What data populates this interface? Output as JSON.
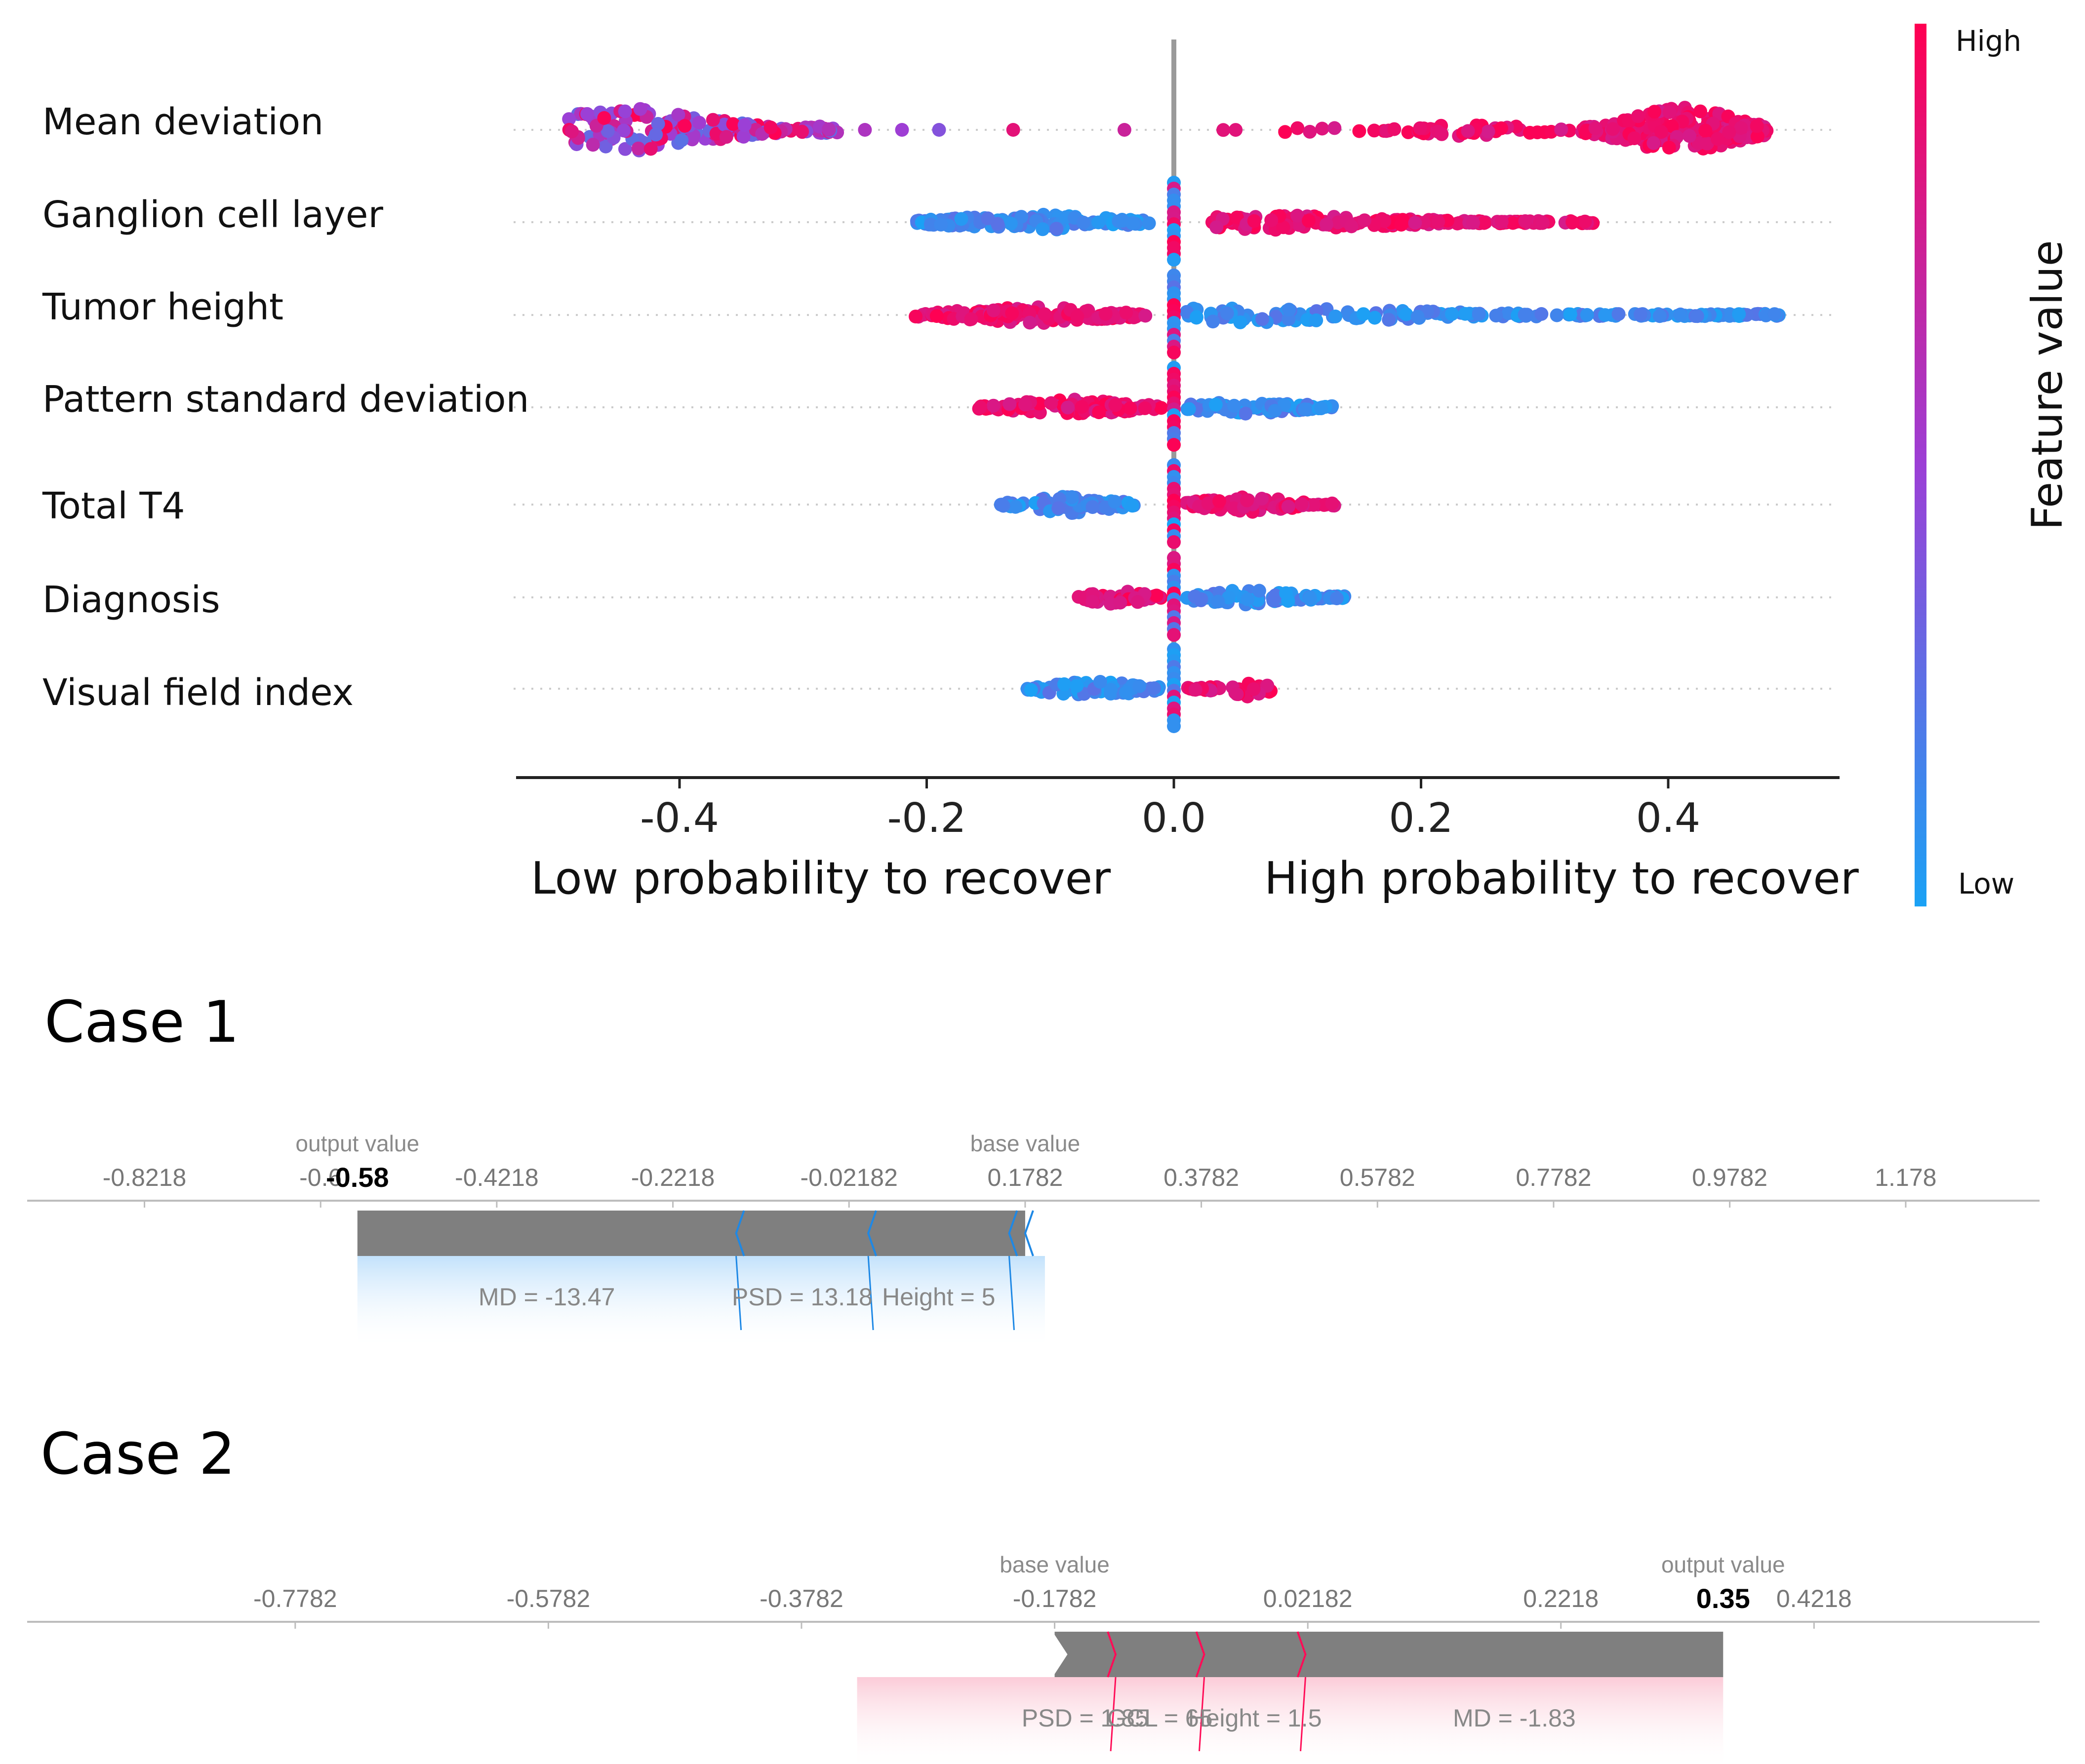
{
  "chart_data": [
    {
      "type": "scatter",
      "subtype": "beeswarm",
      "title": "",
      "features": [
        "Mean deviation",
        "Ganglion cell layer",
        "Tumor height",
        "Pattern standard deviation",
        "Total T4",
        "Diagnosis",
        "Visual field index"
      ],
      "xlim": [
        -0.53,
        0.54
      ],
      "xticks": [
        -0.4,
        -0.2,
        0.0,
        0.2,
        0.4
      ],
      "xtick_labels": [
        "-0.4",
        "-0.2",
        "0.0",
        "0.2",
        "0.4"
      ],
      "xlabel_left": "Low probability to recover",
      "xlabel_right": "High probability to recover",
      "colorbar": {
        "title": "Feature value",
        "high_label": "High",
        "low_label": "Low",
        "high_color": "#ff0d57",
        "low_color": "#1e88e5"
      },
      "series": [
        {
          "feature": "Mean deviation",
          "neg_range": [
            -0.49,
            -0.27
          ],
          "neg_tail": [
            -0.25,
            -0.22,
            -0.19,
            -0.13,
            -0.04
          ],
          "pos_range": [
            0.33,
            0.48
          ],
          "pos_mid": [
            0.04,
            0.05,
            0.09,
            0.1,
            0.11,
            0.12,
            0.13,
            0.15,
            0.17,
            0.2,
            0.21,
            0.24,
            0.26,
            0.28,
            0.3,
            0.32
          ],
          "neg_color": "mixed",
          "pos_color": "high"
        },
        {
          "feature": "Ganglion cell layer",
          "neg_range": [
            -0.21,
            -0.02
          ],
          "pos_range": [
            0.03,
            0.34
          ],
          "neg_color": "low",
          "pos_color": "high"
        },
        {
          "feature": "Tumor height",
          "neg_range": [
            -0.21,
            -0.02
          ],
          "pos_range": [
            0.01,
            0.49
          ],
          "neg_color": "high",
          "pos_color": "low"
        },
        {
          "feature": "Pattern standard deviation",
          "neg_range": [
            -0.16,
            -0.01
          ],
          "pos_range": [
            0.01,
            0.13
          ],
          "neg_color": "high",
          "pos_color": "low"
        },
        {
          "feature": "Total T4",
          "neg_range": [
            -0.14,
            -0.03
          ],
          "pos_range": [
            0.01,
            0.13
          ],
          "neg_color": "low",
          "pos_color": "high"
        },
        {
          "feature": "Diagnosis",
          "neg_range": [
            -0.08,
            -0.01
          ],
          "pos_range": [
            0.01,
            0.14
          ],
          "neg_color": "high",
          "pos_color": "low"
        },
        {
          "feature": "Visual field index",
          "neg_range": [
            -0.12,
            -0.01
          ],
          "pos_range": [
            0.01,
            0.08
          ],
          "neg_color": "low",
          "pos_color": "high"
        }
      ]
    },
    {
      "type": "bar",
      "subtype": "force_plot",
      "title": "Case 1",
      "base_value_label": "base value",
      "base_value": 0.1782,
      "output_value_label": "output value",
      "output_value": -0.58,
      "output_text": "-0.58",
      "ticks": [
        -0.8218,
        -0.6218,
        -0.4218,
        -0.2218,
        -0.02182,
        0.1782,
        0.3782,
        0.5782,
        0.7782,
        0.9782,
        1.178
      ],
      "tick_labels": [
        "-0.8218",
        "-0.6",
        "-0.4218",
        "-0.2218",
        "-0.02182",
        "0.1782",
        "0.3782",
        "0.5782",
        "0.7782",
        "0.9782",
        "1.178"
      ],
      "xlim": [
        -0.955,
        1.33
      ],
      "segments": [
        {
          "label": "MD = -13.47",
          "from": -0.58,
          "to": -0.15
        },
        {
          "label": "PSD = 13.18",
          "from": -0.15,
          "to": 0.0
        },
        {
          "label": "Height = 5",
          "from": 0.0,
          "to": 0.16
        },
        {
          "label": "",
          "from": 0.16,
          "to": 0.1782
        }
      ]
    },
    {
      "type": "bar",
      "subtype": "force_plot",
      "title": "Case 2",
      "base_value_label": "base value",
      "base_value": -0.1782,
      "output_value_label": "output value",
      "output_value": 0.35,
      "output_text": "0.35",
      "ticks": [
        -0.7782,
        -0.5782,
        -0.3782,
        -0.1782,
        0.02182,
        0.2218,
        0.4218
      ],
      "tick_labels": [
        "-0.7782",
        "-0.5782",
        "-0.3782",
        "-0.1782",
        "0.02182",
        "0.2218",
        "0.4218"
      ],
      "xlim": [
        -0.99,
        0.6
      ],
      "segments": [
        {
          "label": "PSD = 1.85",
          "from": -0.1782,
          "to": -0.13
        },
        {
          "label": "GCL = 65",
          "from": -0.13,
          "to": -0.06
        },
        {
          "label": "Height = 1.5",
          "from": -0.06,
          "to": 0.02
        },
        {
          "label": "MD = -1.83",
          "from": 0.02,
          "to": 0.35
        }
      ]
    }
  ]
}
